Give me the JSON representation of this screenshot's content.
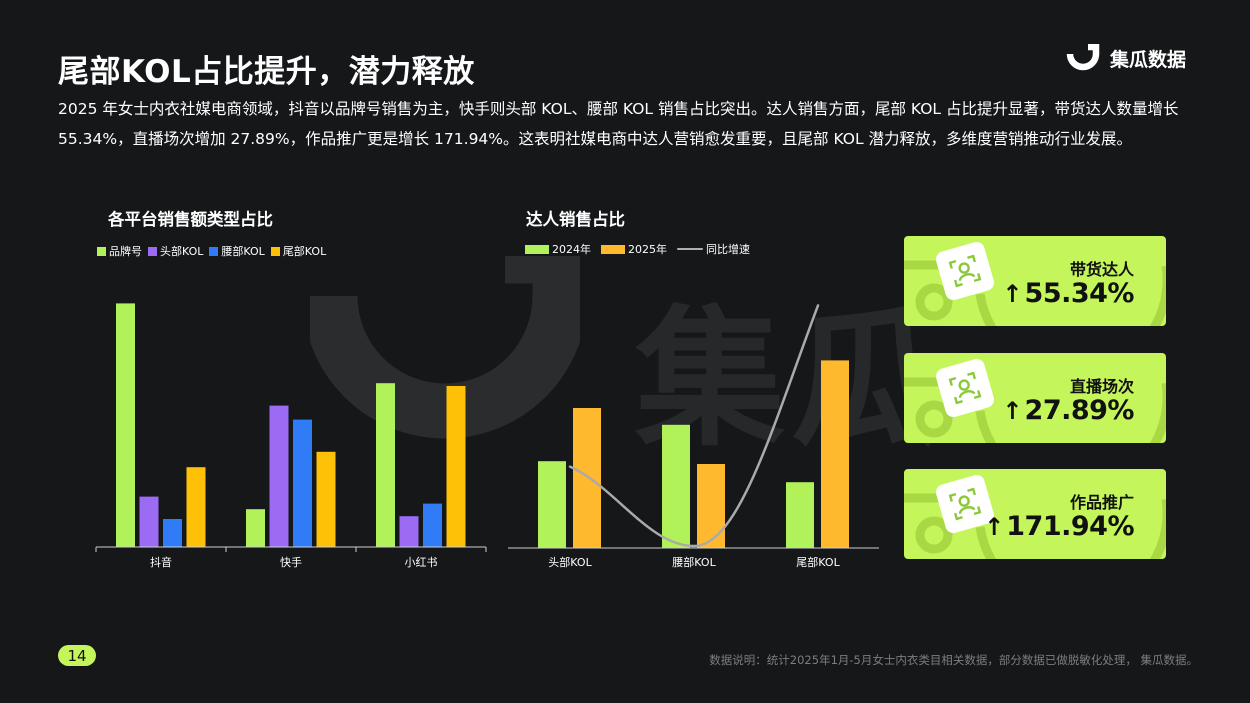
{
  "header": {
    "title": "尾部KOL占比提升，潜力释放",
    "brand_name": "集瓜数据",
    "description": "2025 年女士内衣社媒电商领域，抖音以品牌号销售为主，快手则头部 KOL、腰部 KOL 销售占比突出。达人销售方面，尾部 KOL 占比提升显著，带货达人数量增长 55.34%，直播场次增加 27.89%，作品推广更是增长 171.94%。这表明社媒电商中达人营销愈发重要，且尾部 KOL 潜力释放，多维度营销推动行业发展。"
  },
  "watermark_text": "集瓜",
  "chart_data": [
    {
      "type": "bar",
      "title": "各平台销售额类型占比",
      "categories": [
        "抖音",
        "快手",
        "小红书"
      ],
      "series": [
        {
          "name": "品牌号",
          "color": "#b1f25b",
          "values": [
            0.87,
            0.135,
            0.585
          ]
        },
        {
          "name": "头部KOL",
          "color": "#9b6cf3",
          "values": [
            0.18,
            0.505,
            0.11
          ]
        },
        {
          "name": "腰部KOL",
          "color": "#2f7cf6",
          "values": [
            0.1,
            0.455,
            0.155
          ]
        },
        {
          "name": "尾部KOL",
          "color": "#ffc107",
          "values": [
            0.285,
            0.34,
            0.575
          ]
        }
      ],
      "ylim": [
        0,
        1
      ]
    },
    {
      "type": "bar",
      "title": "达人销售占比",
      "categories": [
        "头部KOL",
        "腰部KOL",
        "尾部KOL"
      ],
      "series": [
        {
          "name": "2024年",
          "color": "#b1f25b",
          "values": [
            0.31,
            0.44,
            0.235
          ]
        },
        {
          "name": "2025年",
          "color": "#ffb92e",
          "values": [
            0.5,
            0.3,
            0.67
          ]
        }
      ],
      "line_series": {
        "name": "同比增速",
        "color": "#aaaaaa",
        "values": [
          0.32,
          0.0,
          0.97
        ]
      },
      "ylim": [
        0,
        1
      ]
    }
  ],
  "cards": [
    {
      "label": "带货达人",
      "arrow": "↑",
      "value": "55.34%"
    },
    {
      "label": "直播场次",
      "arrow": "↑",
      "value": "27.89%"
    },
    {
      "label": "作品推广",
      "arrow": "↑",
      "value": "171.94%"
    }
  ],
  "footer": {
    "page_number": "14",
    "note": "数据说明：统计2025年1月-5月女士内衣类目相关数据，部分数据已做脱敏化处理， 集瓜数据。"
  },
  "colors": {
    "background": "#151718",
    "accent_green": "#c4f55a"
  }
}
